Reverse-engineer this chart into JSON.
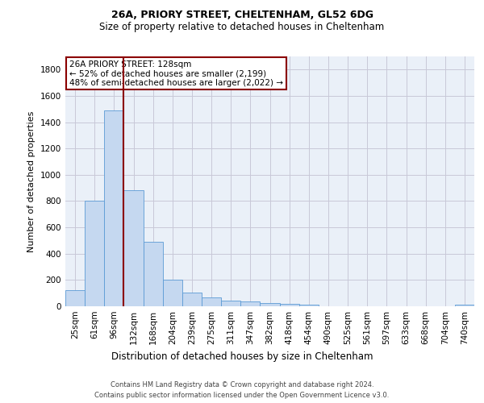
{
  "title1": "26A, PRIORY STREET, CHELTENHAM, GL52 6DG",
  "title2": "Size of property relative to detached houses in Cheltenham",
  "xlabel": "Distribution of detached houses by size in Cheltenham",
  "ylabel": "Number of detached properties",
  "categories": [
    "25sqm",
    "61sqm",
    "96sqm",
    "132sqm",
    "168sqm",
    "204sqm",
    "239sqm",
    "275sqm",
    "311sqm",
    "347sqm",
    "382sqm",
    "418sqm",
    "454sqm",
    "490sqm",
    "525sqm",
    "561sqm",
    "597sqm",
    "633sqm",
    "668sqm",
    "704sqm",
    "740sqm"
  ],
  "values": [
    125,
    800,
    1490,
    880,
    490,
    205,
    105,
    65,
    45,
    35,
    25,
    20,
    10,
    0,
    0,
    0,
    0,
    0,
    0,
    0,
    15
  ],
  "bar_color": "#c5d8f0",
  "bar_edge_color": "#5b9bd5",
  "background_color": "#ffffff",
  "grid_color": "#c8c8d8",
  "vline_color": "#8b0000",
  "annotation_text": "26A PRIORY STREET: 128sqm\n← 52% of detached houses are smaller (2,199)\n48% of semi-detached houses are larger (2,022) →",
  "annotation_box_color": "#8b0000",
  "ylim": [
    0,
    1900
  ],
  "yticks": [
    0,
    200,
    400,
    600,
    800,
    1000,
    1200,
    1400,
    1600,
    1800
  ],
  "footer_line1": "Contains HM Land Registry data © Crown copyright and database right 2024.",
  "footer_line2": "Contains public sector information licensed under the Open Government Licence v3.0."
}
